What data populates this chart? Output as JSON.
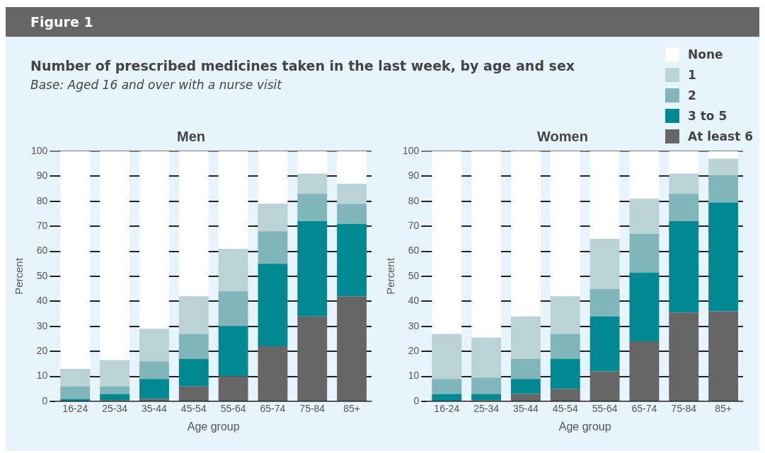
{
  "chart_data": [
    {
      "type": "bar",
      "title": "Men",
      "annotations": [
        "Figure 1",
        "Number of prescribed medicines taken in the last week, by age and sex",
        "Base: Aged 16 and over with a nurse visit"
      ],
      "xlabel": "Age group",
      "ylabel": "Percent",
      "categories": [
        "16-24",
        "25-34",
        "35-44",
        "45-54",
        "55-64",
        "65-74",
        "75-84",
        "85+"
      ],
      "stacked": true,
      "ylim": [
        0,
        100
      ],
      "yticks": [
        0,
        10,
        20,
        30,
        40,
        50,
        60,
        70,
        80,
        90,
        100
      ],
      "grid": "y",
      "legend": "top right",
      "series": [
        {
          "name": "At least 6",
          "color": "#666666",
          "values": [
            0,
            0.5,
            1,
            6,
            10,
            22,
            34,
            42
          ]
        },
        {
          "name": "3 to 5",
          "color": "#008893",
          "values": [
            1,
            2.5,
            8,
            11,
            20,
            33,
            38,
            29
          ]
        },
        {
          "name": "2",
          "color": "#80b5ba",
          "values": [
            5,
            3,
            7,
            10,
            14,
            13,
            11,
            8
          ]
        },
        {
          "name": "1",
          "color": "#bad3d6",
          "values": [
            7,
            10.5,
            13,
            15,
            17,
            11,
            8,
            8
          ]
        },
        {
          "name": "None",
          "color": "#ffffff",
          "values": [
            87,
            83.5,
            71,
            58,
            39,
            21,
            9,
            13
          ]
        }
      ]
    },
    {
      "type": "bar",
      "title": "Women",
      "xlabel": "Age group",
      "ylabel": "Percent",
      "categories": [
        "16-24",
        "25-34",
        "35-44",
        "45-54",
        "55-64",
        "65-74",
        "75-84",
        "85+"
      ],
      "stacked": true,
      "ylim": [
        0,
        100
      ],
      "yticks": [
        0,
        10,
        20,
        30,
        40,
        50,
        60,
        70,
        80,
        90,
        100
      ],
      "grid": "y",
      "series": [
        {
          "color": "#666666",
          "values": [
            0,
            0.5,
            3,
            5,
            12,
            24,
            35.5,
            36
          ]
        },
        {
          "color": "#008893",
          "values": [
            3,
            2.5,
            6,
            12,
            22,
            27.5,
            36.5,
            43.5
          ]
        },
        {
          "color": "#80b5ba",
          "values": [
            6,
            6.5,
            8,
            10,
            11,
            15.5,
            11,
            11
          ]
        },
        {
          "color": "#bad3d6",
          "values": [
            18,
            16,
            17,
            15,
            20,
            14,
            8,
            6.5
          ]
        },
        {
          "color": "#ffffff",
          "values": [
            73,
            74.5,
            66,
            58,
            35,
            19,
            9,
            3
          ]
        }
      ]
    }
  ]
}
